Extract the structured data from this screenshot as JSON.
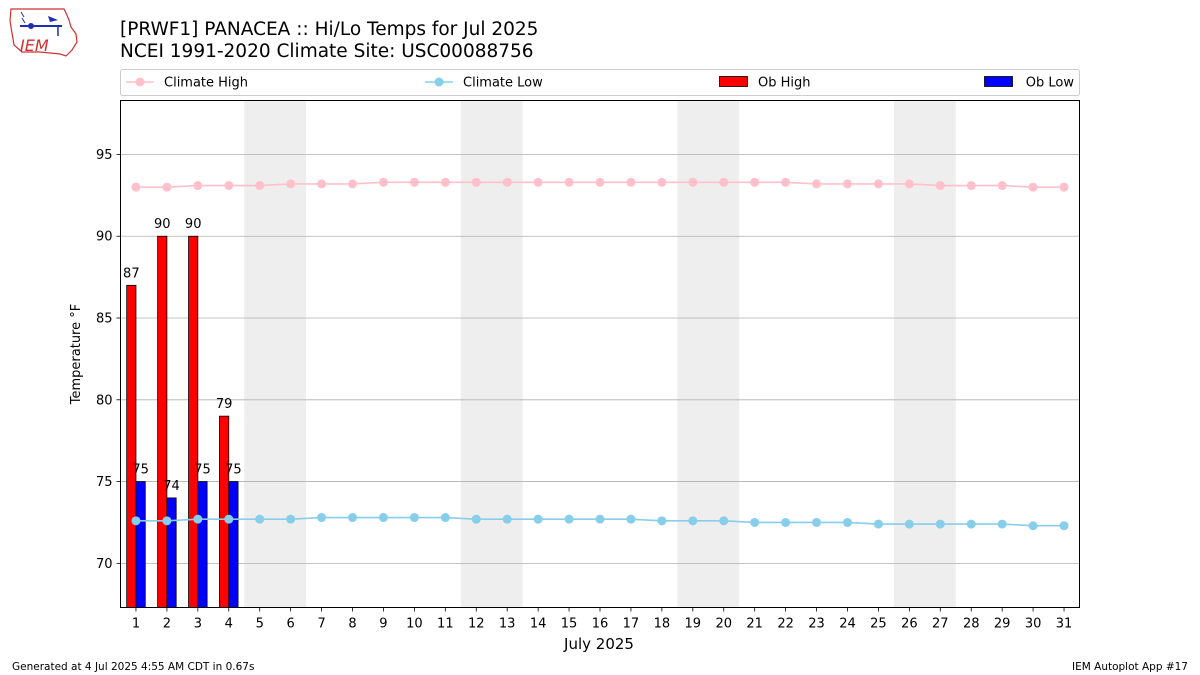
{
  "header": {
    "title_line1": "[PRWF1] PANACEA :: Hi/Lo Temps for Jul 2025",
    "title_line2": "NCEI 1991-2020 Climate Site: USC00088756"
  },
  "logo": {
    "text": "IEM"
  },
  "footer": {
    "left": "Generated at 4 Jul 2025 4:55 AM CDT in 0.67s",
    "right": "IEM Autoplot App #17"
  },
  "colors": {
    "climate_high": "#ffc0cb",
    "climate_low": "#87ceeb",
    "ob_high": "#ff0000",
    "ob_low": "#0000ff",
    "weekend_shade": "#eeeeee",
    "grid": "#b0b0b0"
  },
  "chart_data": {
    "type": "bar",
    "xlabel": "July 2025",
    "ylabel": "Temperature °F",
    "xlim": [
      0.5,
      31.5
    ],
    "ylim": [
      67.3,
      98.3
    ],
    "yticks": [
      70,
      75,
      80,
      85,
      90,
      95
    ],
    "grid": "horizontal",
    "legend_placement": "top",
    "days": [
      1,
      2,
      3,
      4,
      5,
      6,
      7,
      8,
      9,
      10,
      11,
      12,
      13,
      14,
      15,
      16,
      17,
      18,
      19,
      20,
      21,
      22,
      23,
      24,
      25,
      26,
      27,
      28,
      29,
      30,
      31
    ],
    "weekend_spans": [
      [
        4.5,
        6.5
      ],
      [
        11.5,
        13.5
      ],
      [
        18.5,
        20.5
      ],
      [
        25.5,
        27.5
      ]
    ],
    "series": [
      {
        "name": "Climate High",
        "kind": "line",
        "values": [
          93.0,
          93.0,
          93.1,
          93.1,
          93.1,
          93.2,
          93.2,
          93.2,
          93.3,
          93.3,
          93.3,
          93.3,
          93.3,
          93.3,
          93.3,
          93.3,
          93.3,
          93.3,
          93.3,
          93.3,
          93.3,
          93.3,
          93.2,
          93.2,
          93.2,
          93.2,
          93.1,
          93.1,
          93.1,
          93.0,
          93.0
        ]
      },
      {
        "name": "Climate Low",
        "kind": "line",
        "values": [
          72.6,
          72.6,
          72.7,
          72.7,
          72.7,
          72.7,
          72.8,
          72.8,
          72.8,
          72.8,
          72.8,
          72.7,
          72.7,
          72.7,
          72.7,
          72.7,
          72.7,
          72.6,
          72.6,
          72.6,
          72.5,
          72.5,
          72.5,
          72.5,
          72.4,
          72.4,
          72.4,
          72.4,
          72.4,
          72.3,
          72.3
        ]
      },
      {
        "name": "Ob High",
        "kind": "bar",
        "days": [
          1,
          2,
          3,
          4
        ],
        "values": [
          87,
          90,
          90,
          79
        ],
        "labels": [
          "87",
          "90",
          "90",
          "79"
        ]
      },
      {
        "name": "Ob Low",
        "kind": "bar",
        "days": [
          1,
          2,
          3,
          4
        ],
        "values": [
          75,
          74,
          75,
          75
        ],
        "labels": [
          "75",
          "74",
          "75",
          "75"
        ]
      }
    ]
  }
}
